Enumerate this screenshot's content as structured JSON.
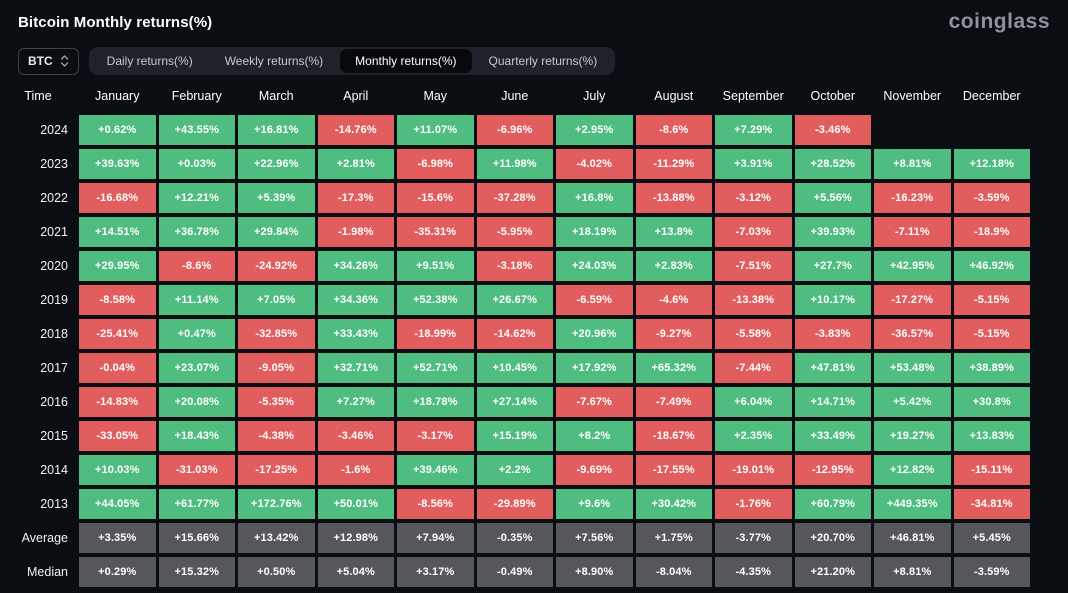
{
  "header": {
    "title": "Bitcoin Monthly returns(%)",
    "logo": "coinglass"
  },
  "controls": {
    "symbol_select": {
      "value": "BTC"
    },
    "tabs": [
      {
        "label": "Daily returns(%)",
        "active": false
      },
      {
        "label": "Weekly returns(%)",
        "active": false
      },
      {
        "label": "Monthly returns(%)",
        "active": true
      },
      {
        "label": "Quarterly returns(%)",
        "active": false
      }
    ]
  },
  "chart_data": {
    "type": "heatmap",
    "title": "Bitcoin Monthly returns(%)",
    "time_column_label": "Time",
    "categories": [
      "January",
      "February",
      "March",
      "April",
      "May",
      "June",
      "July",
      "August",
      "September",
      "October",
      "November",
      "December"
    ],
    "colors": {
      "positive": "#4fbc80",
      "negative": "#e25e5e",
      "summary": "#55575d",
      "background": "#0a0d12"
    },
    "rows": [
      {
        "label": "2024",
        "type": "year",
        "values": [
          "+0.62%",
          "+43.55%",
          "+16.81%",
          "-14.76%",
          "+11.07%",
          "-6.96%",
          "+2.95%",
          "-8.6%",
          "+7.29%",
          "-3.46%",
          "",
          ""
        ]
      },
      {
        "label": "2023",
        "type": "year",
        "values": [
          "+39.63%",
          "+0.03%",
          "+22.96%",
          "+2.81%",
          "-6.98%",
          "+11.98%",
          "-4.02%",
          "-11.29%",
          "+3.91%",
          "+28.52%",
          "+8.81%",
          "+12.18%"
        ]
      },
      {
        "label": "2022",
        "type": "year",
        "values": [
          "-16.68%",
          "+12.21%",
          "+5.39%",
          "-17.3%",
          "-15.6%",
          "-37.28%",
          "+16.8%",
          "-13.88%",
          "-3.12%",
          "+5.56%",
          "-16.23%",
          "-3.59%"
        ]
      },
      {
        "label": "2021",
        "type": "year",
        "values": [
          "+14.51%",
          "+36.78%",
          "+29.84%",
          "-1.98%",
          "-35.31%",
          "-5.95%",
          "+18.19%",
          "+13.8%",
          "-7.03%",
          "+39.93%",
          "-7.11%",
          "-18.9%"
        ]
      },
      {
        "label": "2020",
        "type": "year",
        "values": [
          "+29.95%",
          "-8.6%",
          "-24.92%",
          "+34.26%",
          "+9.51%",
          "-3.18%",
          "+24.03%",
          "+2.83%",
          "-7.51%",
          "+27.7%",
          "+42.95%",
          "+46.92%"
        ]
      },
      {
        "label": "2019",
        "type": "year",
        "values": [
          "-8.58%",
          "+11.14%",
          "+7.05%",
          "+34.36%",
          "+52.38%",
          "+26.67%",
          "-6.59%",
          "-4.6%",
          "-13.38%",
          "+10.17%",
          "-17.27%",
          "-5.15%"
        ]
      },
      {
        "label": "2018",
        "type": "year",
        "values": [
          "-25.41%",
          "+0.47%",
          "-32.85%",
          "+33.43%",
          "-18.99%",
          "-14.62%",
          "+20.96%",
          "-9.27%",
          "-5.58%",
          "-3.83%",
          "-36.57%",
          "-5.15%"
        ]
      },
      {
        "label": "2017",
        "type": "year",
        "values": [
          "-0.04%",
          "+23.07%",
          "-9.05%",
          "+32.71%",
          "+52.71%",
          "+10.45%",
          "+17.92%",
          "+65.32%",
          "-7.44%",
          "+47.81%",
          "+53.48%",
          "+38.89%"
        ]
      },
      {
        "label": "2016",
        "type": "year",
        "values": [
          "-14.83%",
          "+20.08%",
          "-5.35%",
          "+7.27%",
          "+18.78%",
          "+27.14%",
          "-7.67%",
          "-7.49%",
          "+6.04%",
          "+14.71%",
          "+5.42%",
          "+30.8%"
        ]
      },
      {
        "label": "2015",
        "type": "year",
        "values": [
          "-33.05%",
          "+18.43%",
          "-4.38%",
          "-3.46%",
          "-3.17%",
          "+15.19%",
          "+8.2%",
          "-18.67%",
          "+2.35%",
          "+33.49%",
          "+19.27%",
          "+13.83%"
        ]
      },
      {
        "label": "2014",
        "type": "year",
        "values": [
          "+10.03%",
          "-31.03%",
          "-17.25%",
          "-1.6%",
          "+39.46%",
          "+2.2%",
          "-9.69%",
          "-17.55%",
          "-19.01%",
          "-12.95%",
          "+12.82%",
          "-15.11%"
        ]
      },
      {
        "label": "2013",
        "type": "year",
        "values": [
          "+44.05%",
          "+61.77%",
          "+172.76%",
          "+50.01%",
          "-8.56%",
          "-29.89%",
          "+9.6%",
          "+30.42%",
          "-1.76%",
          "+60.79%",
          "+449.35%",
          "-34.81%"
        ]
      },
      {
        "label": "Average",
        "type": "summary",
        "values": [
          "+3.35%",
          "+15.66%",
          "+13.42%",
          "+12.98%",
          "+7.94%",
          "-0.35%",
          "+7.56%",
          "+1.75%",
          "-3.77%",
          "+20.70%",
          "+46.81%",
          "+5.45%"
        ]
      },
      {
        "label": "Median",
        "type": "summary",
        "values": [
          "+0.29%",
          "+15.32%",
          "+0.50%",
          "+5.04%",
          "+3.17%",
          "-0.49%",
          "+8.90%",
          "-8.04%",
          "-4.35%",
          "+21.20%",
          "+8.81%",
          "-3.59%"
        ]
      }
    ]
  }
}
